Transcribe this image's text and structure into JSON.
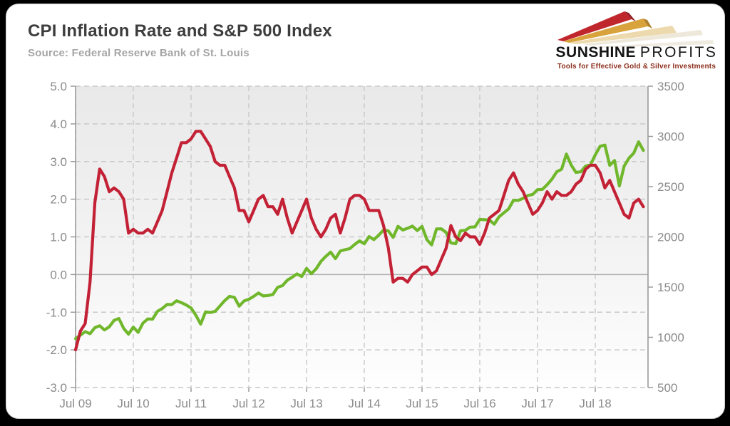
{
  "header": {
    "title": "CPI Inflation Rate and S&P 500 Index",
    "source": "Source: Federal Reserve Bank of St. Louis"
  },
  "logo": {
    "brand_primary": "SUNSHINE",
    "brand_secondary": "PROFITS",
    "tagline": "Tools for Effective Gold & Silver Investments",
    "colors": {
      "ray_red": "#c0272d",
      "ray_gold": "#d8a23c",
      "ray_beige": "#e9d7ae",
      "tagline": "#8c2e1c"
    }
  },
  "chart_data": {
    "type": "line",
    "title": "CPI Inflation Rate and S&P 500 Index",
    "frequency": "monthly",
    "x_start": "Jul 2009",
    "x_end": "May 2019",
    "x_ticks": [
      {
        "label": "Jul 09",
        "month_index": 0
      },
      {
        "label": "Jul 10",
        "month_index": 12
      },
      {
        "label": "Jul 11",
        "month_index": 24
      },
      {
        "label": "Jul 12",
        "month_index": 36
      },
      {
        "label": "Jul 13",
        "month_index": 48
      },
      {
        "label": "Jul 14",
        "month_index": 60
      },
      {
        "label": "Jul 15",
        "month_index": 72
      },
      {
        "label": "Jul 16",
        "month_index": 84
      },
      {
        "label": "Jul 17",
        "month_index": 96
      },
      {
        "label": "Jul 18",
        "month_index": 108
      }
    ],
    "left_ylim": [
      -3,
      5
    ],
    "right_ylim": [
      500,
      3500
    ],
    "left_ticks": [
      5.0,
      4.0,
      3.0,
      2.0,
      1.0,
      0.0,
      -1.0,
      -2.0,
      -3.0
    ],
    "right_ticks": [
      3500,
      3000,
      2500,
      2000,
      1500,
      1000,
      500
    ],
    "grid": {
      "horizontal": "dashed",
      "vertical": "dashed",
      "zero_line": "solid"
    },
    "legend": "none",
    "series": [
      {
        "name": "S&P 500 Index",
        "axis": "right",
        "color": "#70b72c",
        "values": [
          987,
          1021,
          1057,
          1036,
          1096,
          1115,
          1074,
          1104,
          1169,
          1187,
          1089,
          1031,
          1102,
          1049,
          1141,
          1183,
          1181,
          1258,
          1286,
          1327,
          1326,
          1364,
          1345,
          1321,
          1292,
          1219,
          1131,
          1253,
          1247,
          1258,
          1312,
          1366,
          1408,
          1398,
          1310,
          1362,
          1379,
          1407,
          1441,
          1412,
          1416,
          1426,
          1498,
          1515,
          1569,
          1598,
          1631,
          1606,
          1686,
          1633,
          1682,
          1757,
          1806,
          1848,
          1783,
          1859,
          1872,
          1884,
          1924,
          1960,
          1931,
          2003,
          1972,
          2018,
          2068,
          2059,
          1995,
          2105,
          2068,
          2086,
          2107,
          2063,
          2104,
          1972,
          1920,
          2079,
          2080,
          2044,
          1940,
          1932,
          2060,
          2065,
          2097,
          2099,
          2174,
          2171,
          2168,
          2126,
          2199,
          2239,
          2279,
          2364,
          2363,
          2384,
          2412,
          2423,
          2470,
          2472,
          2519,
          2575,
          2648,
          2674,
          2824,
          2714,
          2641,
          2648,
          2705,
          2718,
          2816,
          2902,
          2914,
          2712,
          2760,
          2507,
          2704,
          2784,
          2834,
          2946,
          2860
        ]
      },
      {
        "name": "CPI Inflation Rate",
        "axis": "left",
        "color": "#c32135",
        "values": [
          -2.0,
          -1.5,
          -1.3,
          -0.2,
          1.9,
          2.8,
          2.6,
          2.2,
          2.3,
          2.2,
          2.0,
          1.1,
          1.2,
          1.1,
          1.1,
          1.2,
          1.1,
          1.4,
          1.7,
          2.2,
          2.7,
          3.1,
          3.5,
          3.5,
          3.6,
          3.8,
          3.8,
          3.6,
          3.4,
          3.0,
          2.9,
          2.9,
          2.6,
          2.3,
          1.7,
          1.7,
          1.4,
          1.7,
          2.0,
          2.1,
          1.8,
          1.8,
          1.6,
          2.0,
          1.5,
          1.1,
          1.4,
          1.7,
          2.0,
          1.5,
          1.2,
          1.0,
          1.2,
          1.5,
          1.6,
          1.1,
          1.5,
          2.0,
          2.1,
          2.1,
          2.0,
          1.7,
          1.7,
          1.7,
          1.3,
          0.7,
          -0.2,
          -0.1,
          -0.1,
          -0.2,
          0.0,
          0.1,
          0.2,
          0.2,
          0.0,
          0.1,
          0.4,
          0.7,
          1.3,
          1.0,
          0.9,
          1.1,
          1.0,
          1.0,
          0.8,
          1.1,
          1.5,
          1.6,
          1.7,
          2.1,
          2.5,
          2.7,
          2.4,
          2.2,
          1.9,
          1.6,
          1.7,
          1.9,
          2.2,
          2.0,
          2.2,
          2.1,
          2.1,
          2.2,
          2.4,
          2.5,
          2.8,
          2.9,
          2.9,
          2.7,
          2.3,
          2.5,
          2.2,
          1.9,
          1.6,
          1.5,
          1.9,
          2.0,
          1.8
        ]
      }
    ]
  }
}
